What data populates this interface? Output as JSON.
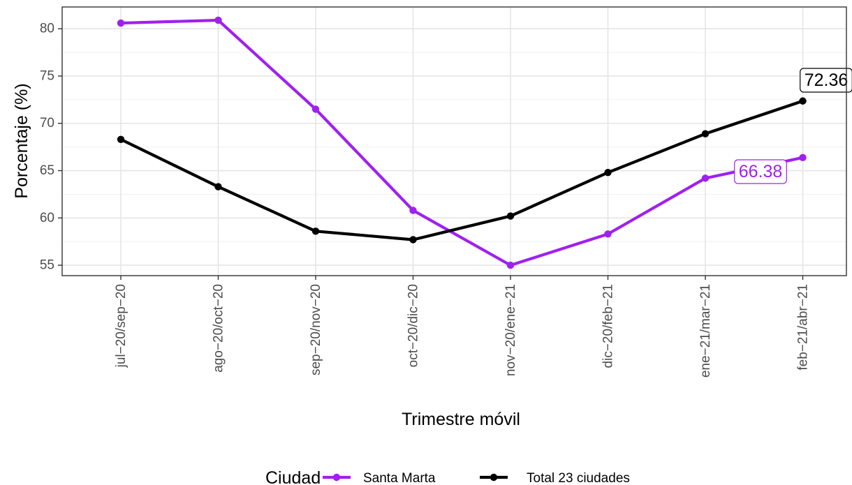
{
  "chart_data": {
    "type": "line",
    "xlabel": "Trimestre móvil",
    "ylabel": "Porcentaje (%)",
    "categories": [
      "jul−20/sep−20",
      "ago−20/oct−20",
      "sep−20/nov−20",
      "oct−20/dic−20",
      "nov−20/ene−21",
      "dic−20/feb−21",
      "ene−21/mar−21",
      "feb−21/abr−21"
    ],
    "ylim": [
      53.9,
      82.3
    ],
    "yticks": [
      55,
      60,
      65,
      70,
      75,
      80
    ],
    "grid": true,
    "legend": {
      "title": "Ciudad",
      "position": "bottom"
    },
    "series": [
      {
        "name": "Santa Marta",
        "color": "#a020f0",
        "values": [
          80.6,
          80.9,
          71.5,
          60.8,
          55.0,
          58.3,
          64.2,
          66.38
        ],
        "end_label": "66.38"
      },
      {
        "name": "Total 23 ciudades",
        "color": "#000000",
        "values": [
          68.3,
          63.3,
          58.6,
          57.7,
          60.2,
          64.8,
          68.9,
          72.36
        ],
        "end_label": "72.36"
      }
    ]
  }
}
